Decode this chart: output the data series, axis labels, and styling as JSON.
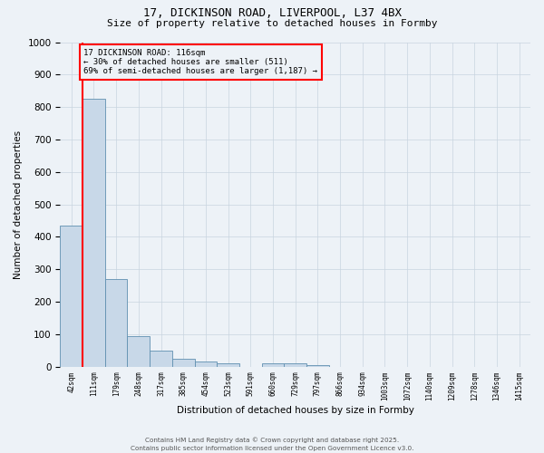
{
  "title1": "17, DICKINSON ROAD, LIVERPOOL, L37 4BX",
  "title2": "Size of property relative to detached houses in Formby",
  "xlabel": "Distribution of detached houses by size in Formby",
  "ylabel": "Number of detached properties",
  "categories": [
    "42sqm",
    "111sqm",
    "179sqm",
    "248sqm",
    "317sqm",
    "385sqm",
    "454sqm",
    "523sqm",
    "591sqm",
    "660sqm",
    "729sqm",
    "797sqm",
    "866sqm",
    "934sqm",
    "1003sqm",
    "1072sqm",
    "1140sqm",
    "1209sqm",
    "1278sqm",
    "1346sqm",
    "1415sqm"
  ],
  "bar_heights": [
    435,
    825,
    270,
    95,
    50,
    25,
    15,
    10,
    0,
    10,
    10,
    5,
    0,
    0,
    0,
    0,
    0,
    0,
    0,
    0,
    0
  ],
  "bar_color": "#c8d8e8",
  "bar_edge_color": "#6090b0",
  "ylim": [
    0,
    1000
  ],
  "yticks": [
    0,
    100,
    200,
    300,
    400,
    500,
    600,
    700,
    800,
    900,
    1000
  ],
  "property_sqm": 116,
  "annotation_title": "17 DICKINSON ROAD: 116sqm",
  "annotation_line1": "← 30% of detached houses are smaller (511)",
  "annotation_line2": "69% of semi-detached houses are larger (1,187) →",
  "footer1": "Contains HM Land Registry data © Crown copyright and database right 2025.",
  "footer2": "Contains public sector information licensed under the Open Government Licence v3.0.",
  "background_color": "#edf2f7",
  "grid_color": "#c8d4e0"
}
